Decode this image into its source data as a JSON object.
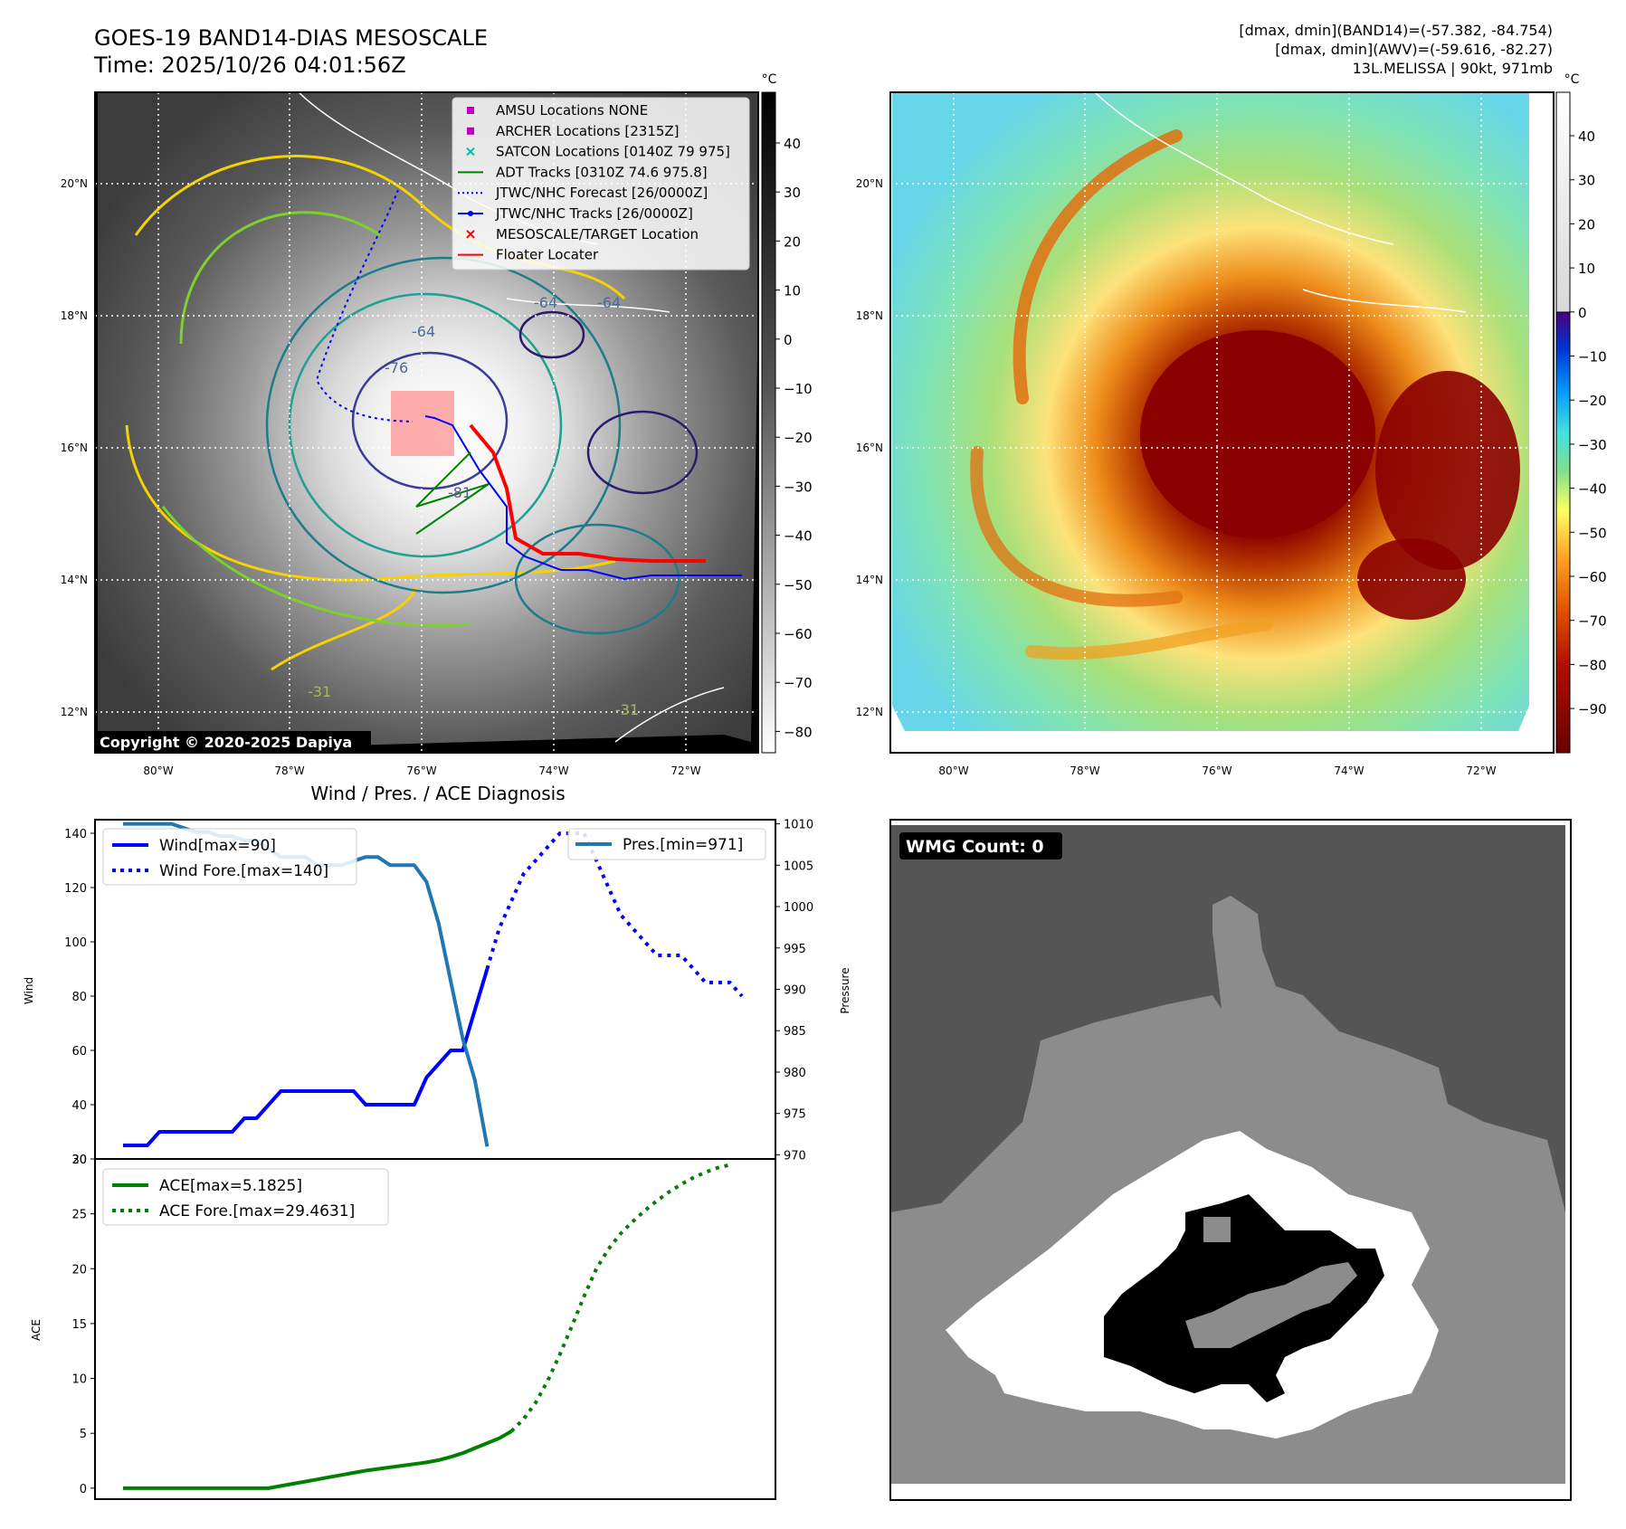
{
  "header": {
    "title_line1": "GOES-19 BAND14-DIAS MESOSCALE",
    "title_line2": "Time: 2025/10/26 04:01:56Z",
    "stats_line1": "[dmax, dmin](BAND14)=(-57.382, -84.754)",
    "stats_line2": "[dmax, dmin](AWV)=(-59.616, -82.27)",
    "stats_line3": "13L.MELISSA | 90kt, 971mb"
  },
  "maps": {
    "lat_ticks": [
      "20°N",
      "18°N",
      "16°N",
      "14°N",
      "12°N"
    ],
    "lon_ticks": [
      "80°W",
      "78°W",
      "76°W",
      "74°W",
      "72°W"
    ],
    "copyright": "Copyright © 2020-2025 Dapiya",
    "colorbar_unit": "°C",
    "gray_colorbar_ticks": [
      "40",
      "30",
      "20",
      "10",
      "0",
      "−10",
      "−20",
      "−30",
      "−40",
      "−50",
      "−60",
      "−70",
      "−80"
    ],
    "color_colorbar_ticks": [
      "40",
      "30",
      "20",
      "10",
      "0",
      "−10",
      "−20",
      "−30",
      "−40",
      "−50",
      "−60",
      "−70",
      "−80",
      "−90"
    ],
    "contour_labels": [
      "-64",
      "-64",
      "-76",
      "-81",
      "-31",
      "-31",
      "-64"
    ],
    "legend": [
      {
        "label": "AMSU Locations NONE",
        "color": "#bf00bf",
        "marker": "square"
      },
      {
        "label": "ARCHER Locations [2315Z]",
        "color": "#bf00bf",
        "marker": "square"
      },
      {
        "label": "SATCON Locations [0140Z 79 975]",
        "color": "#00bfbf",
        "marker": "x"
      },
      {
        "label": "ADT Tracks [0310Z 74.6 975.8]",
        "color": "#008000",
        "marker": "line"
      },
      {
        "label": "JTWC/NHC Forecast [26/0000Z]",
        "color": "#0000ff",
        "marker": "dotted"
      },
      {
        "label": "JTWC/NHC Tracks [26/0000Z]",
        "color": "#0000ff",
        "marker": "line-dot"
      },
      {
        "label": "MESOSCALE/TARGET Location",
        "color": "#ff0000",
        "marker": "x"
      },
      {
        "label": "Floater Locater",
        "color": "#ff0000",
        "marker": "line"
      }
    ]
  },
  "chart_data": [
    {
      "type": "line",
      "title": "Wind / Pres. / ACE Diagnosis",
      "ylabel": "Wind",
      "y2label": "Pressure",
      "ylim": [
        20,
        145
      ],
      "y2lim": [
        969.5,
        1010.5
      ],
      "yticks": [
        20,
        40,
        60,
        80,
        100,
        120,
        140
      ],
      "y2ticks": [
        970,
        975,
        980,
        985,
        990,
        995,
        1000,
        1005,
        1010
      ],
      "x_index": [
        0,
        1,
        2,
        3,
        4,
        5,
        6,
        7,
        8,
        9,
        10,
        11,
        12,
        13,
        14,
        15,
        16,
        17,
        18,
        19,
        20,
        21,
        22,
        23,
        24,
        25,
        26,
        27,
        28,
        29,
        30,
        31,
        32,
        33,
        34,
        35,
        36,
        37,
        38,
        39,
        40,
        41,
        42,
        43,
        44,
        45,
        46,
        47,
        48,
        49,
        50,
        51
      ],
      "series": [
        {
          "name": "Wind[max=90]",
          "axis": "left",
          "style": "solid",
          "color": "#0000ff",
          "values": [
            25,
            25,
            25,
            30,
            30,
            30,
            30,
            30,
            30,
            30,
            35,
            35,
            40,
            45,
            45,
            45,
            45,
            45,
            45,
            45,
            40,
            40,
            40,
            40,
            40,
            50,
            55,
            60,
            60,
            75,
            90
          ]
        },
        {
          "name": "Wind Fore.[max=140]",
          "axis": "left",
          "style": "dotted",
          "color": "#0000ff",
          "offset": 30,
          "values": [
            90,
            105,
            115,
            125,
            130,
            135,
            140,
            140,
            140,
            130,
            120,
            110,
            105,
            100,
            95,
            95,
            95,
            90,
            85,
            85,
            85,
            80
          ]
        },
        {
          "name": "Pres.[min=971]",
          "axis": "right",
          "style": "solid",
          "color": "#1f77b4",
          "values": [
            1010,
            1010,
            1010,
            1010,
            1010,
            1009.5,
            1009,
            1009,
            1008.5,
            1008.5,
            1008,
            1008,
            1007,
            1006,
            1006,
            1006,
            1005,
            1005,
            1005,
            1005.5,
            1006,
            1006,
            1005,
            1005,
            1005,
            1003,
            998,
            991,
            984,
            979,
            971
          ]
        }
      ]
    },
    {
      "type": "line",
      "ylabel": "ACE",
      "ylim": [
        -1,
        30
      ],
      "yticks": [
        0,
        5,
        10,
        15,
        20,
        25,
        30
      ],
      "x_index": [
        0,
        1,
        2,
        3,
        4,
        5,
        6,
        7,
        8,
        9,
        10,
        11,
        12,
        13,
        14,
        15,
        16,
        17,
        18,
        19,
        20,
        21,
        22,
        23,
        24,
        25,
        26,
        27,
        28,
        29,
        30,
        31,
        32,
        33,
        34,
        35,
        36,
        37,
        38,
        39,
        40,
        41,
        42,
        43,
        44,
        45,
        46,
        47,
        48,
        49,
        50,
        51
      ],
      "series": [
        {
          "name": "ACE[max=5.1825]",
          "style": "solid",
          "color": "#008000",
          "values": [
            0,
            0,
            0,
            0,
            0,
            0,
            0,
            0,
            0,
            0,
            0,
            0,
            0,
            0.2,
            0.4,
            0.6,
            0.8,
            1.0,
            1.2,
            1.4,
            1.6,
            1.75,
            1.9,
            2.05,
            2.2,
            2.35,
            2.55,
            2.85,
            3.2,
            3.65,
            4.1,
            4.55,
            5.18
          ]
        },
        {
          "name": "ACE Fore.[max=29.4631]",
          "style": "dotted",
          "color": "#008000",
          "offset": 32,
          "values": [
            5.18,
            6.3,
            7.8,
            9.8,
            12.2,
            14.8,
            17.5,
            20.0,
            21.8,
            23.2,
            24.3,
            25.3,
            26.2,
            27.0,
            27.7,
            28.3,
            28.8,
            29.2,
            29.46
          ]
        }
      ]
    }
  ],
  "wmg": {
    "label": "WMG Count: 0",
    "palette": {
      "black": "#000000",
      "white": "#ffffff",
      "light": "#8c8c8c",
      "dark": "#555555"
    }
  },
  "colors": {
    "map_dark_bg": "#555555",
    "eye_red": "#8b0000",
    "frame": "#000000"
  }
}
